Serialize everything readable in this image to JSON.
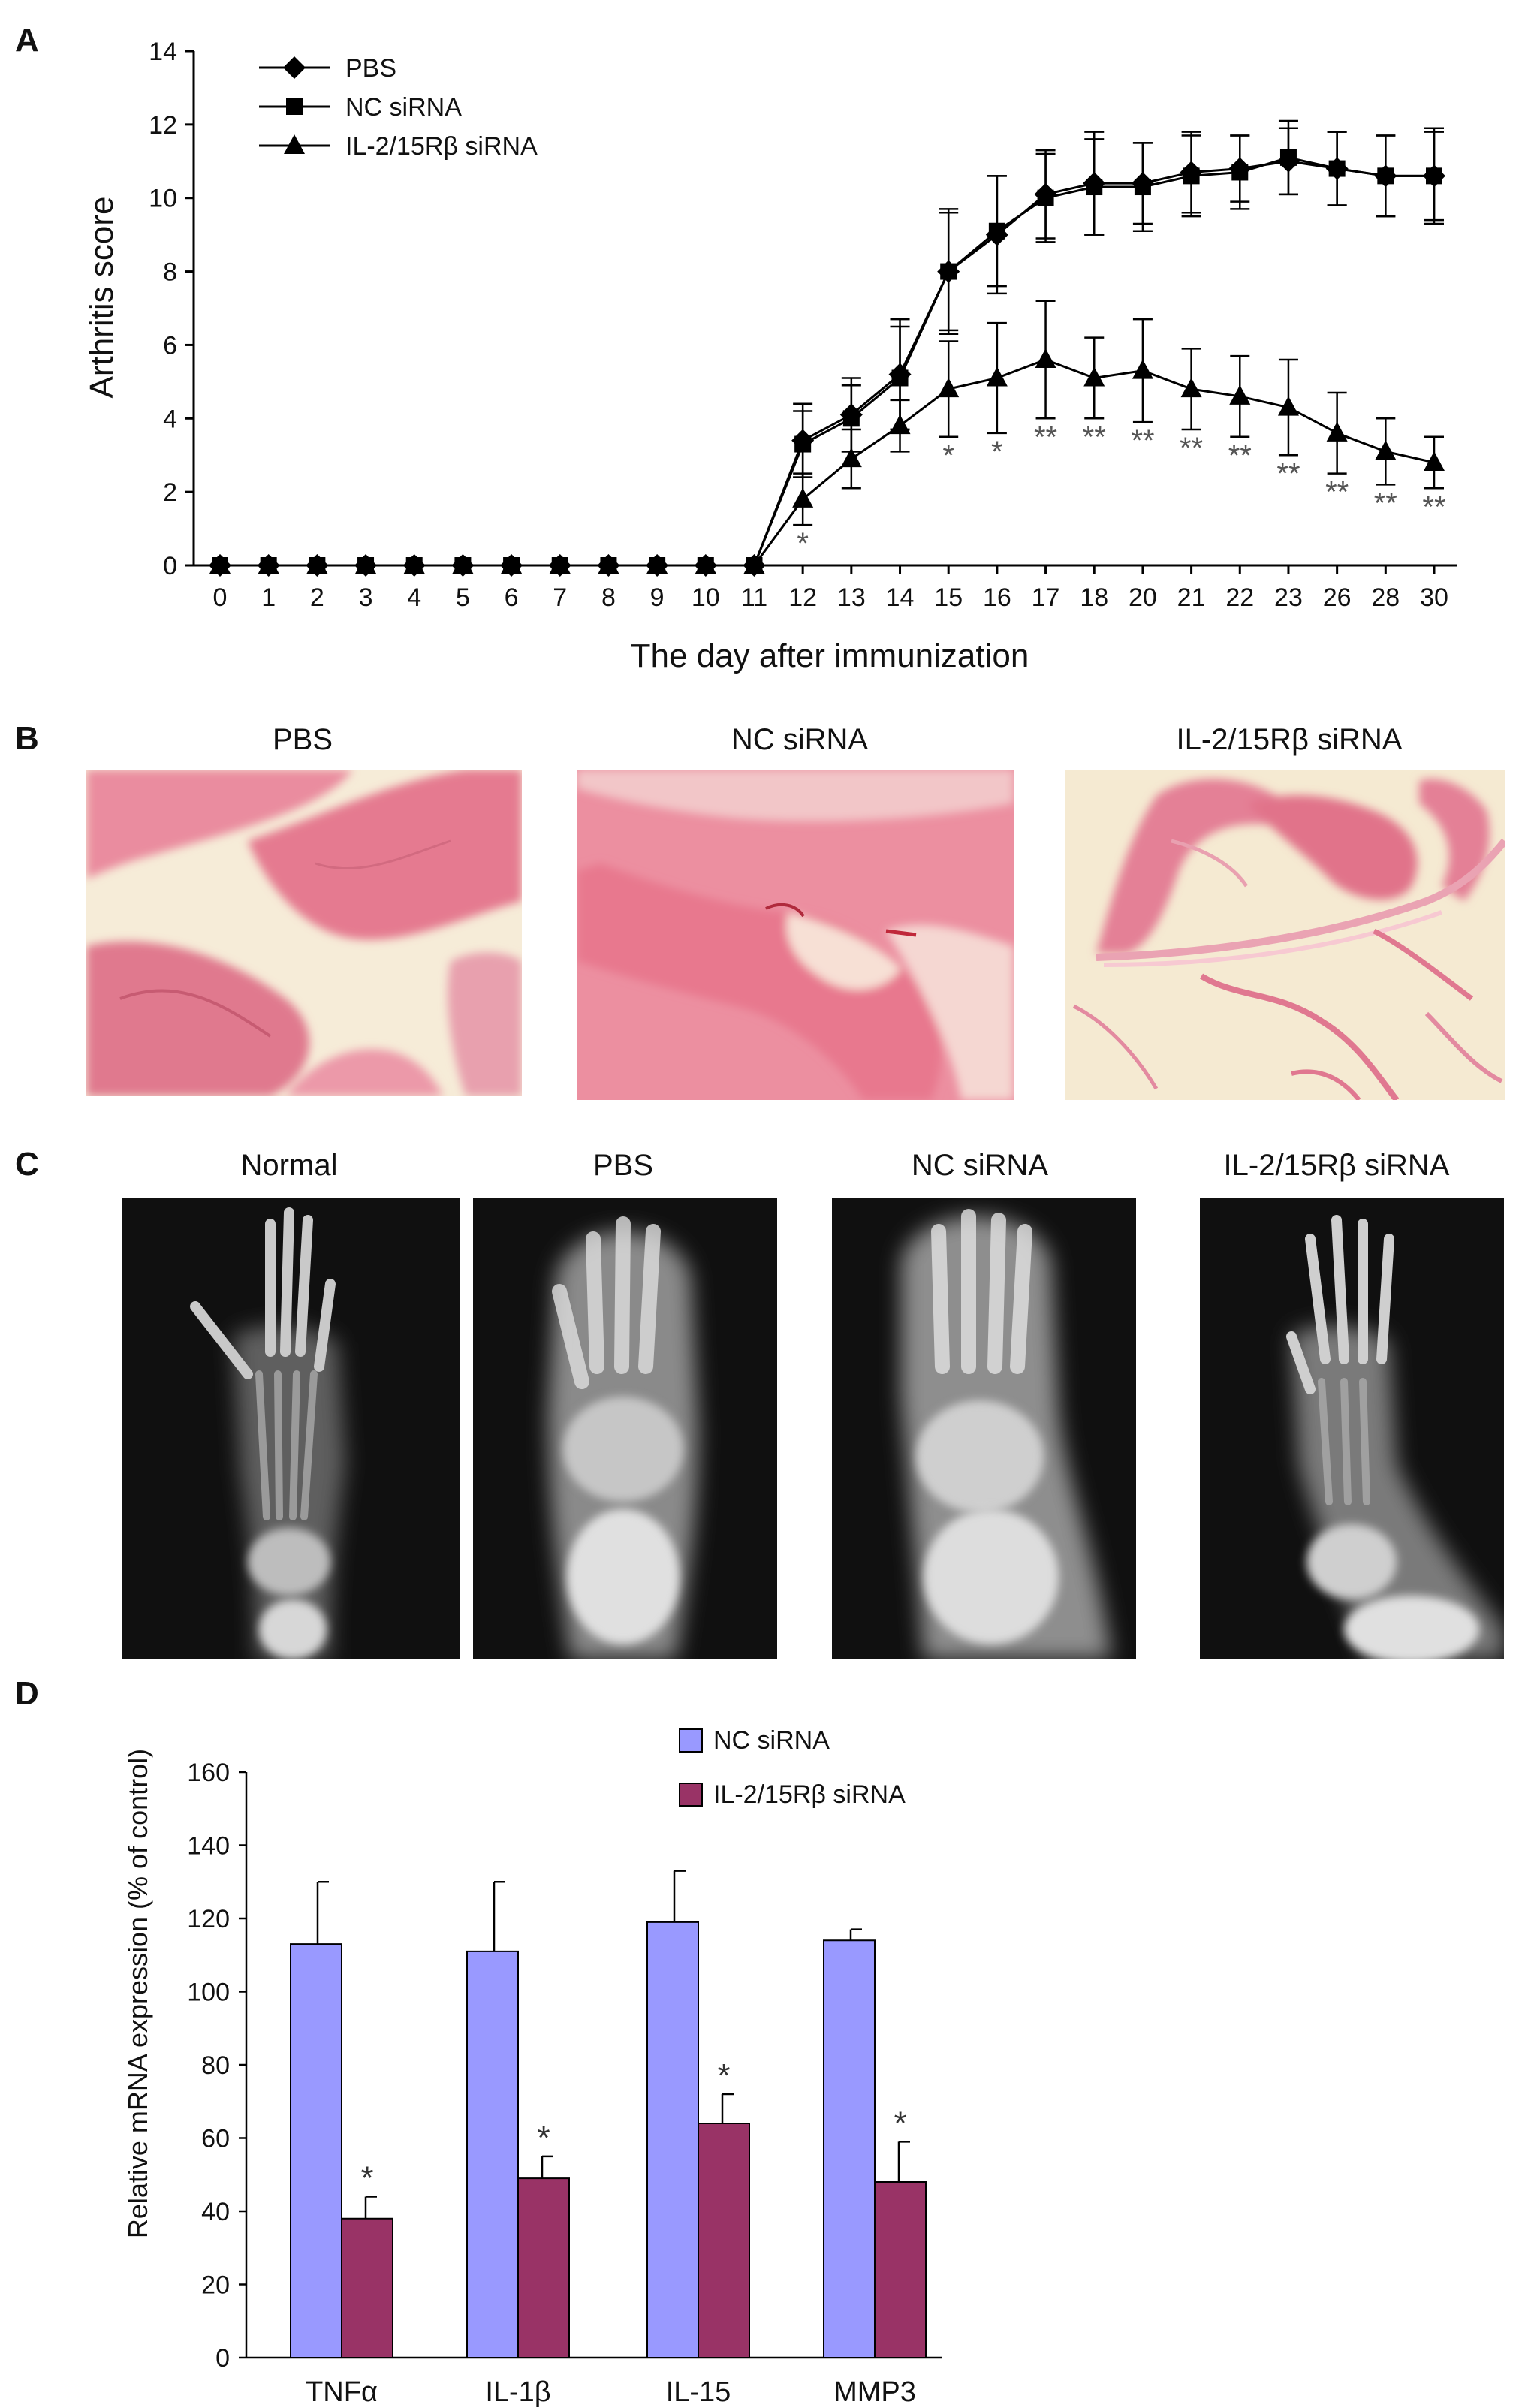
{
  "panels": {
    "a": {
      "letter": "A"
    },
    "b": {
      "letter": "B"
    },
    "c": {
      "letter": "C"
    },
    "d": {
      "letter": "D"
    }
  },
  "histology": {
    "titles": [
      "PBS",
      "NC siRNA",
      "IL-2/15Rβ siRNA"
    ]
  },
  "xray": {
    "titles": [
      "Normal",
      "PBS",
      "NC siRNA",
      "IL-2/15Rβ siRNA"
    ]
  },
  "colors": {
    "nc_bar": "#9999ff",
    "il_bar": "#993366",
    "line": "#000000",
    "histo_pink": "#e9879c",
    "histo_cream": "#f6ecd8",
    "xray_bg": "#111111"
  },
  "chart_data": [
    {
      "type": "line",
      "panel": "A",
      "xlabel": "The day after immunization",
      "ylabel": "Arthritis score",
      "ylim": [
        0,
        14
      ],
      "yticks": [
        0,
        2,
        4,
        6,
        8,
        10,
        12,
        14
      ],
      "categories": [
        "0",
        "1",
        "2",
        "3",
        "4",
        "5",
        "6",
        "7",
        "8",
        "9",
        "10",
        "11",
        "12",
        "13",
        "14",
        "15",
        "16",
        "17",
        "18",
        "20",
        "21",
        "22",
        "23",
        "26",
        "28",
        "30"
      ],
      "legend_position": "top-left",
      "series": [
        {
          "name": "PBS",
          "marker": "diamond",
          "values": [
            0,
            0,
            0,
            0,
            0,
            0,
            0,
            0,
            0,
            0,
            0,
            0,
            3.4,
            4.1,
            5.2,
            8.0,
            9.0,
            10.1,
            10.4,
            10.4,
            10.7,
            10.8,
            11.0,
            10.8,
            10.6,
            10.6
          ],
          "errors": [
            0,
            0,
            0,
            0,
            0,
            0,
            0,
            0,
            0,
            0,
            0,
            0,
            1.0,
            1.0,
            1.5,
            1.7,
            1.6,
            1.2,
            1.4,
            1.1,
            1.1,
            0.9,
            0.9,
            1.0,
            1.1,
            1.3
          ]
        },
        {
          "name": "NC siRNA",
          "marker": "square",
          "values": [
            0,
            0,
            0,
            0,
            0,
            0,
            0,
            0,
            0,
            0,
            0,
            0,
            3.3,
            4.0,
            5.1,
            8.0,
            9.1,
            10.0,
            10.3,
            10.3,
            10.6,
            10.7,
            11.1,
            10.8,
            10.6,
            10.6
          ],
          "errors": [
            0,
            0,
            0,
            0,
            0,
            0,
            0,
            0,
            0,
            0,
            0,
            0,
            0.9,
            0.9,
            1.4,
            1.6,
            1.5,
            1.2,
            1.3,
            1.2,
            1.1,
            1.0,
            1.0,
            1.0,
            1.1,
            1.2
          ]
        },
        {
          "name": "IL-2/15Rβ siRNA",
          "marker": "triangle",
          "values": [
            0,
            0,
            0,
            0,
            0,
            0,
            0,
            0,
            0,
            0,
            0,
            0,
            1.8,
            2.9,
            3.8,
            4.8,
            5.1,
            5.6,
            5.1,
            5.3,
            4.8,
            4.6,
            4.3,
            3.6,
            3.1,
            2.8
          ],
          "errors": [
            0,
            0,
            0,
            0,
            0,
            0,
            0,
            0,
            0,
            0,
            0,
            0,
            0.7,
            0.8,
            0.7,
            1.3,
            1.5,
            1.6,
            1.1,
            1.4,
            1.1,
            1.1,
            1.3,
            1.1,
            0.9,
            0.7
          ]
        }
      ],
      "significance": [
        "",
        "",
        "",
        "",
        "",
        "",
        "",
        "",
        "",
        "",
        "",
        "",
        "*",
        "",
        "",
        "*",
        "*",
        "**",
        "**",
        "**",
        "**",
        "**",
        "**",
        "**",
        "**",
        "**"
      ]
    },
    {
      "type": "bar",
      "panel": "D",
      "xlabel": "",
      "ylabel": "Relative mRNA expression (% of control)",
      "ylim": [
        0,
        160
      ],
      "yticks": [
        0,
        20,
        40,
        60,
        80,
        100,
        120,
        140,
        160
      ],
      "categories": [
        "TNFα",
        "IL-1β",
        "IL-15",
        "MMP3"
      ],
      "legend_position": "top-right",
      "series": [
        {
          "name": "NC siRNA",
          "values": [
            113,
            111,
            119,
            114
          ],
          "errors": [
            17,
            19,
            14,
            3
          ]
        },
        {
          "name": "IL-2/15Rβ siRNA",
          "values": [
            38,
            49,
            64,
            48
          ],
          "errors": [
            6,
            6,
            8,
            11
          ]
        }
      ],
      "significance": [
        "*",
        "*",
        "*",
        "*"
      ]
    }
  ]
}
